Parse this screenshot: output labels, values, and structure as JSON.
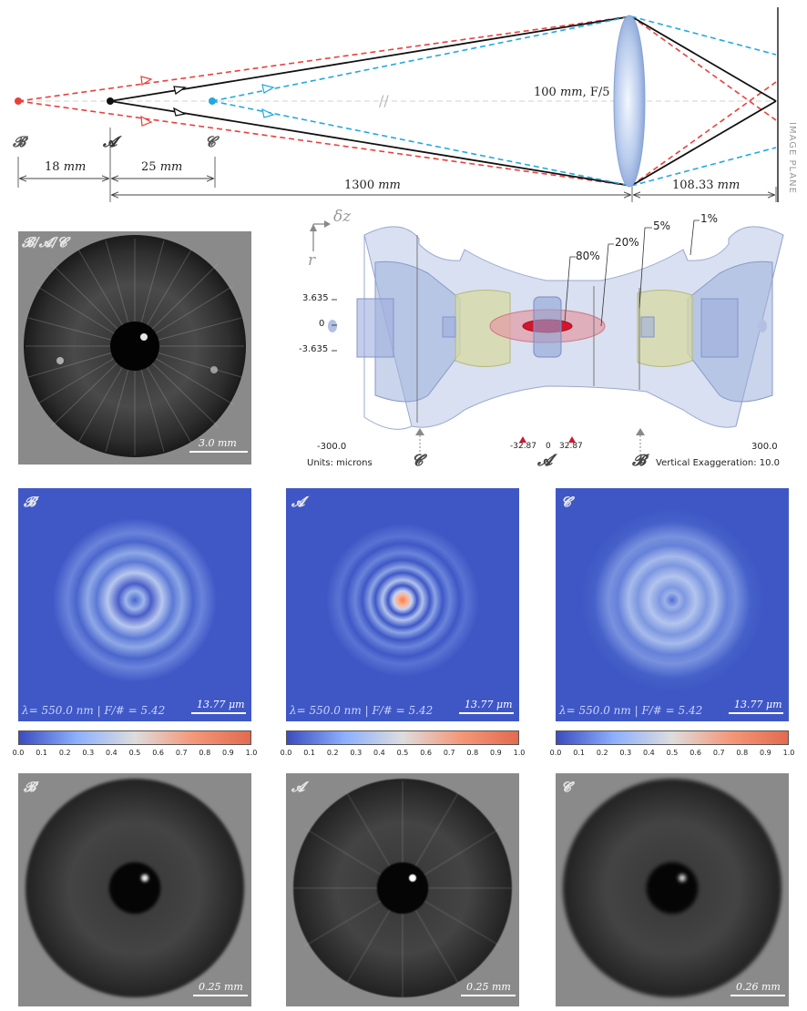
{
  "optics": {
    "labels": {
      "b": "𝓑",
      "a": "𝓐",
      "c": "𝓒"
    },
    "lens_label_num": "100",
    "lens_label_unit": "mm",
    "lens_label_fnum": ", F/5",
    "image_plane": "IMAGE PLANE",
    "dims": [
      {
        "num": "18",
        "unit": "mm"
      },
      {
        "num": "25",
        "unit": "mm"
      },
      {
        "num": "1300",
        "unit": "mm"
      },
      {
        "num": "108.33",
        "unit": "mm"
      }
    ],
    "colors": {
      "a": "#111111",
      "b": "#e8403c",
      "c": "#22a8e0"
    }
  },
  "object_panel": {
    "label": "𝓑/𝓐/𝓒",
    "scale_num": "3.0",
    "scale_unit": "mm"
  },
  "depth_diagram": {
    "axis_dz": "δz",
    "axis_r": "r",
    "y_ticks": [
      "3.635",
      "0",
      "-3.635"
    ],
    "contour_labels": [
      "80%",
      "20%",
      "5%",
      "1%"
    ],
    "x_left": "-300.0",
    "x_right": "300.0",
    "x_mid_neg": "-32.87",
    "x_mid_zero": "0",
    "x_mid_pos": "32.87",
    "units": "Units: microns",
    "exaggeration": "Vertical Exaggeration: 10.0",
    "markers": [
      "𝓒′",
      "𝓐′",
      "𝓑′"
    ]
  },
  "psf_panels": [
    {
      "label": "𝓑′",
      "caption_lambda": "λ= 550.0 ",
      "caption_unit": "nm",
      "caption_f": " | F/# = 5.42",
      "scale_num": "13.77",
      "scale_unit": "μm"
    },
    {
      "label": "𝓐′",
      "caption_lambda": "λ= 550.0 ",
      "caption_unit": "nm",
      "caption_f": " | F/# = 5.42",
      "scale_num": "13.77",
      "scale_unit": "μm"
    },
    {
      "label": "𝓒′",
      "caption_lambda": "λ= 550.0 ",
      "caption_unit": "nm",
      "caption_f": " | F/# = 5.42",
      "scale_num": "13.77",
      "scale_unit": "μm"
    }
  ],
  "colorbar_ticks": [
    "0.0",
    "0.1",
    "0.2",
    "0.3",
    "0.4",
    "0.5",
    "0.6",
    "0.7",
    "0.8",
    "0.9",
    "1.0"
  ],
  "image_panels": [
    {
      "label": "𝓑′",
      "scale_num": "0.25",
      "scale_unit": "mm"
    },
    {
      "label": "𝓐′",
      "scale_num": "0.25",
      "scale_unit": "mm"
    },
    {
      "label": "𝓒′",
      "scale_num": "0.26",
      "scale_unit": "mm"
    }
  ]
}
